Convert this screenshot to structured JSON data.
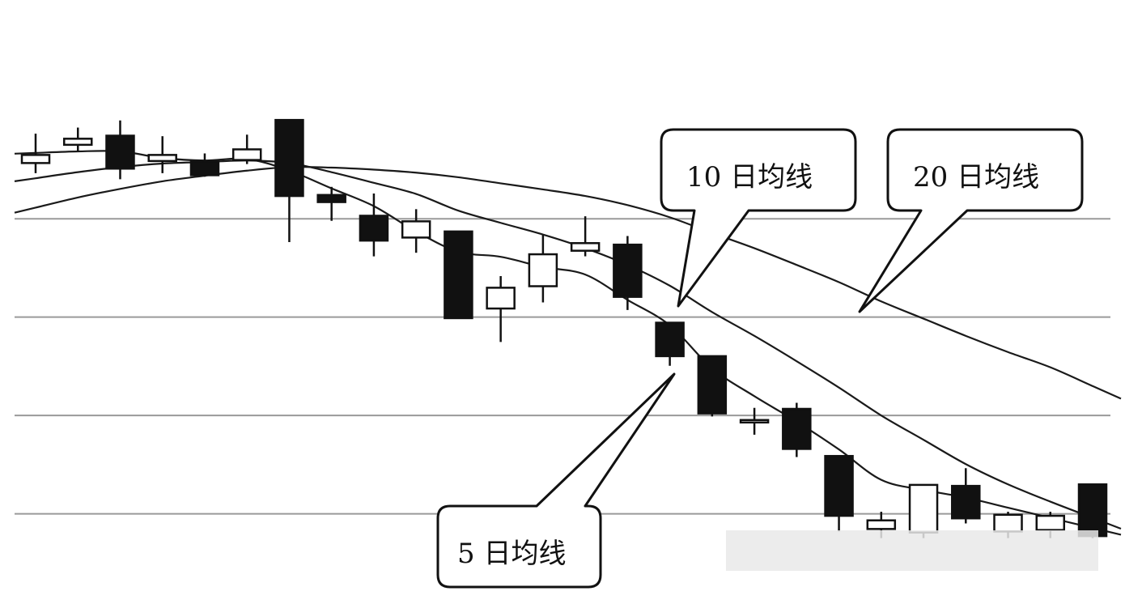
{
  "chart_data": {
    "type": "candlestick",
    "title": "",
    "xlabel": "",
    "ylabel": "",
    "grid": true,
    "ylim": [
      0,
      100
    ],
    "annotations": [
      {
        "id": "ma5",
        "text": "5 日均线"
      },
      {
        "id": "ma10",
        "text": "10 日均线"
      },
      {
        "id": "ma20",
        "text": "20 日均线"
      }
    ],
    "candles": [
      {
        "o": 87.0,
        "h": 92.8,
        "l": 85.0,
        "c": 88.6
      },
      {
        "o": 90.6,
        "h": 94.0,
        "l": 89.3,
        "c": 91.8
      },
      {
        "o": 92.4,
        "h": 95.4,
        "l": 83.8,
        "c": 85.9
      },
      {
        "o": 87.4,
        "h": 92.3,
        "l": 85.0,
        "c": 88.6
      },
      {
        "o": 87.3,
        "h": 88.9,
        "l": 84.3,
        "c": 84.6
      },
      {
        "o": 87.6,
        "h": 92.6,
        "l": 86.8,
        "c": 89.7
      },
      {
        "o": 95.5,
        "h": 95.5,
        "l": 71.4,
        "c": 80.5
      },
      {
        "o": 80.7,
        "h": 82.3,
        "l": 75.6,
        "c": 79.3
      },
      {
        "o": 76.6,
        "h": 81.0,
        "l": 68.6,
        "c": 71.7
      },
      {
        "o": 72.3,
        "h": 77.9,
        "l": 69.3,
        "c": 75.5
      },
      {
        "o": 73.5,
        "h": 73.5,
        "l": 56.4,
        "c": 56.4
      },
      {
        "o": 58.3,
        "h": 64.7,
        "l": 51.7,
        "c": 62.4
      },
      {
        "o": 62.7,
        "h": 72.8,
        "l": 59.5,
        "c": 69.0
      },
      {
        "o": 69.7,
        "h": 76.5,
        "l": 68.6,
        "c": 71.2
      },
      {
        "o": 70.9,
        "h": 72.6,
        "l": 58.0,
        "c": 60.6
      },
      {
        "o": 55.5,
        "h": 55.5,
        "l": 47.0,
        "c": 48.9
      },
      {
        "o": 48.9,
        "h": 48.9,
        "l": 37.0,
        "c": 37.6
      },
      {
        "o": 36.3,
        "h": 38.7,
        "l": 33.4,
        "c": 36.3
      },
      {
        "o": 38.5,
        "h": 39.7,
        "l": 29.0,
        "c": 30.6
      },
      {
        "o": 29.2,
        "h": 29.2,
        "l": 14.3,
        "c": 17.4
      },
      {
        "o": 14.8,
        "h": 18.2,
        "l": 13.0,
        "c": 16.5
      },
      {
        "o": 14.1,
        "h": 23.5,
        "l": 13.0,
        "c": 23.5
      },
      {
        "o": 23.3,
        "h": 26.8,
        "l": 15.9,
        "c": 16.9
      },
      {
        "o": 14.3,
        "h": 18.2,
        "l": 13.0,
        "c": 17.6
      },
      {
        "o": 14.6,
        "h": 18.2,
        "l": 13.0,
        "c": 17.4
      },
      {
        "o": 23.6,
        "h": 23.6,
        "l": 13.0,
        "c": 13.4
      }
    ],
    "series": [
      {
        "name": "5 日均线",
        "values": [
          89.0,
          89.3,
          89.3,
          88.0,
          87.5,
          87.8,
          85.5,
          82.0,
          78.5,
          73.5,
          69.5,
          68.5,
          66.5,
          65.0,
          60.0,
          55.0,
          46.5,
          41.0,
          36.0,
          30.5,
          24.5,
          22.5,
          21.0,
          19.0,
          17.0,
          15.0
        ]
      },
      {
        "name": "10 日均线",
        "values": [
          84.0,
          85.2,
          86.2,
          86.9,
          87.2,
          87.5,
          87.0,
          85.2,
          83.1,
          80.9,
          77.6,
          75.2,
          72.9,
          70.2,
          66.9,
          62.8,
          57.6,
          52.9,
          47.9,
          42.7,
          37.2,
          32.4,
          27.6,
          23.6,
          20.2,
          17.0
        ]
      },
      {
        "name": "20 日均线",
        "values": [
          78.2,
          80.2,
          81.9,
          83.4,
          84.5,
          85.5,
          86.2,
          86.1,
          85.7,
          85.1,
          84.2,
          83.0,
          81.8,
          80.5,
          78.7,
          76.3,
          73.2,
          70.2,
          66.9,
          63.5,
          59.7,
          56.3,
          52.9,
          49.7,
          46.7,
          43.0
        ]
      }
    ]
  }
}
